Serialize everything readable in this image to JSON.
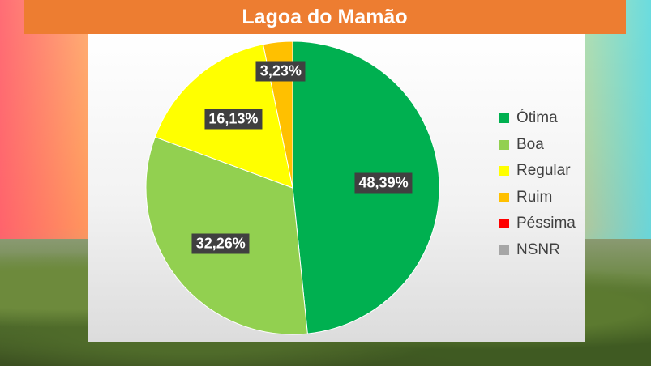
{
  "header": {
    "title": "Lagoa do Mamão"
  },
  "chart_data": {
    "type": "pie",
    "title": "Lagoa do Mamão",
    "legend_position": "right",
    "slices": [
      {
        "label": "Ótima",
        "value": 48.39,
        "display": "48,39%",
        "color": "#00b050"
      },
      {
        "label": "Boa",
        "value": 32.26,
        "display": "32,26%",
        "color": "#92d050"
      },
      {
        "label": "Regular",
        "value": 16.13,
        "display": "16,13%",
        "color": "#ffff00"
      },
      {
        "label": "Ruim",
        "value": 3.23,
        "display": "3,23%",
        "color": "#ffc000"
      },
      {
        "label": "Péssima",
        "value": 0,
        "display": "",
        "color": "#ff0000"
      },
      {
        "label": "NSNR",
        "value": 0,
        "display": "",
        "color": "#a6a6a6"
      }
    ]
  }
}
